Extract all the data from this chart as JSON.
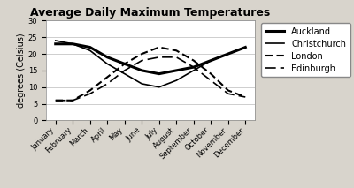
{
  "title": "Average Daily Maximum Temperatures",
  "ylabel": "degrees (Celsius)",
  "months": [
    "January",
    "February",
    "March",
    "April",
    "May",
    "June",
    "July",
    "August",
    "September",
    "October",
    "November",
    "December"
  ],
  "ylim": [
    0,
    30
  ],
  "yticks": [
    0,
    5,
    10,
    15,
    20,
    25,
    30
  ],
  "series": {
    "Auckland": [
      23,
      23,
      22,
      19,
      17,
      15,
      14,
      15,
      16,
      18,
      20,
      22
    ],
    "Christchurch": [
      24,
      23,
      21,
      17,
      14,
      11,
      10,
      12,
      15,
      18,
      20,
      22
    ],
    "London": [
      6,
      6,
      9,
      13,
      17,
      20,
      22,
      21,
      18,
      14,
      9,
      7
    ],
    "Edinburgh": [
      6,
      6,
      8,
      11,
      15,
      18,
      19,
      19,
      16,
      12,
      8,
      7
    ]
  },
  "styles": {
    "Auckland": {
      "linestyle": "-",
      "linewidth": 2.2,
      "color": "#000000",
      "dashes": []
    },
    "Christchurch": {
      "linestyle": "-",
      "linewidth": 1.2,
      "color": "#000000",
      "dashes": []
    },
    "London": {
      "linestyle": "--",
      "linewidth": 1.5,
      "color": "#000000",
      "dashes": [
        4,
        2
      ]
    },
    "Edinburgh": {
      "linestyle": "--",
      "linewidth": 1.2,
      "color": "#000000",
      "dashes": [
        7,
        3
      ]
    }
  },
  "legend_order": [
    "Auckland",
    "Christchurch",
    "London",
    "Edinburgh"
  ],
  "background_color": "#d8d4cc",
  "plot_bg_color": "#ffffff",
  "title_fontsize": 9,
  "axis_label_fontsize": 7,
  "tick_fontsize": 6,
  "legend_fontsize": 7
}
